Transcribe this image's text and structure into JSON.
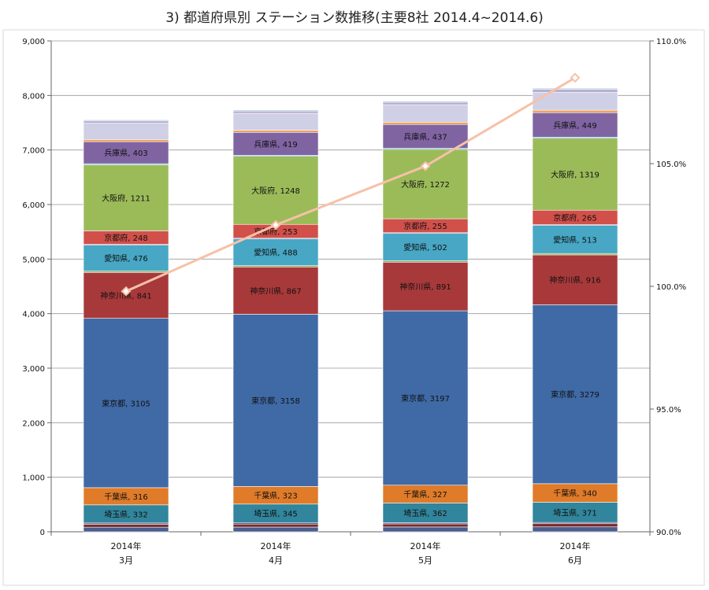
{
  "title": "3) 都道府県別 ステーション数推移(主要8社 2014.4~2014.6)",
  "chart_data": {
    "type": "bar",
    "stacked": true,
    "title": "3) 都道府県別 ステーション数推移(主要8社 2014.4~2014.6)",
    "categories": [
      {
        "line1": "2014年",
        "line2": "3月"
      },
      {
        "line1": "2014年",
        "line2": "4月"
      },
      {
        "line1": "2014年",
        "line2": "5月"
      },
      {
        "line1": "2014年",
        "line2": "6月"
      }
    ],
    "y_left": {
      "min": 0,
      "max": 9000,
      "step": 1000,
      "ticks": [
        "0",
        "1,000",
        "2,000",
        "3,000",
        "4,000",
        "5,000",
        "6,000",
        "7,000",
        "8,000",
        "9,000"
      ]
    },
    "y_right": {
      "min": 90.0,
      "max": 110.0,
      "step": 5.0,
      "ticks": [
        "90.0%",
        "95.0%",
        "100.0%",
        "105.0%",
        "110.0%"
      ]
    },
    "grid": true,
    "legend": "none",
    "series": [
      {
        "label": "",
        "color": "#4a5e8f",
        "values": [
          84,
          86,
          88,
          90
        ],
        "show_label": false
      },
      {
        "label": "",
        "color": "#7a2a2a",
        "values": [
          55,
          55,
          56,
          58
        ],
        "show_label": false
      },
      {
        "label": "",
        "color": "#5e4a7a",
        "values": [
          22,
          22,
          22,
          23
        ],
        "show_label": false
      },
      {
        "label": "埼玉県",
        "color": "#31859c",
        "values": [
          332,
          345,
          362,
          371
        ],
        "show_label": true
      },
      {
        "label": "千葉県",
        "color": "#e07b2a",
        "values": [
          316,
          323,
          327,
          340
        ],
        "show_label": true
      },
      {
        "label": "東京都",
        "color": "#3f6aa6",
        "values": [
          3105,
          3158,
          3197,
          3279
        ],
        "show_label": true
      },
      {
        "label": "神奈川県",
        "color": "#a8393a",
        "values": [
          841,
          867,
          891,
          916
        ],
        "show_label": true
      },
      {
        "label": "",
        "color": "#8fb050",
        "values": [
          25,
          25,
          25,
          26
        ],
        "show_label": false
      },
      {
        "label": "愛知県",
        "color": "#47a7c4",
        "values": [
          476,
          488,
          502,
          513
        ],
        "show_label": true
      },
      {
        "label": "",
        "color": "#4f7fbf",
        "values": [
          14,
          14,
          14,
          15
        ],
        "show_label": false
      },
      {
        "label": "京都府",
        "color": "#d1504a",
        "values": [
          248,
          253,
          255,
          265
        ],
        "show_label": true
      },
      {
        "label": "大阪府",
        "color": "#9bbb59",
        "values": [
          1211,
          1248,
          1272,
          1319
        ],
        "show_label": true
      },
      {
        "label": "",
        "color": "#4bacc6",
        "values": [
          20,
          20,
          20,
          20
        ],
        "show_label": false
      },
      {
        "label": "兵庫県",
        "color": "#8064a2",
        "values": [
          403,
          419,
          437,
          449
        ],
        "show_label": true
      },
      {
        "label": "",
        "color": "#f0a05a",
        "values": [
          40,
          40,
          42,
          45
        ],
        "show_label": false
      },
      {
        "label": "",
        "color": "#cfcfe6",
        "values": [
          300,
          310,
          320,
          330
        ],
        "show_label": false
      },
      {
        "label": "",
        "color": "#b7a8cf",
        "values": [
          40,
          40,
          45,
          50
        ],
        "show_label": false
      },
      {
        "label": "",
        "color": "#a9d1de",
        "values": [
          20,
          20,
          22,
          24
        ],
        "show_label": false
      }
    ],
    "line_series": {
      "label": "",
      "axis": "right",
      "color": "#f7c1a8",
      "values": [
        99.8,
        102.5,
        104.9,
        108.5
      ]
    }
  }
}
